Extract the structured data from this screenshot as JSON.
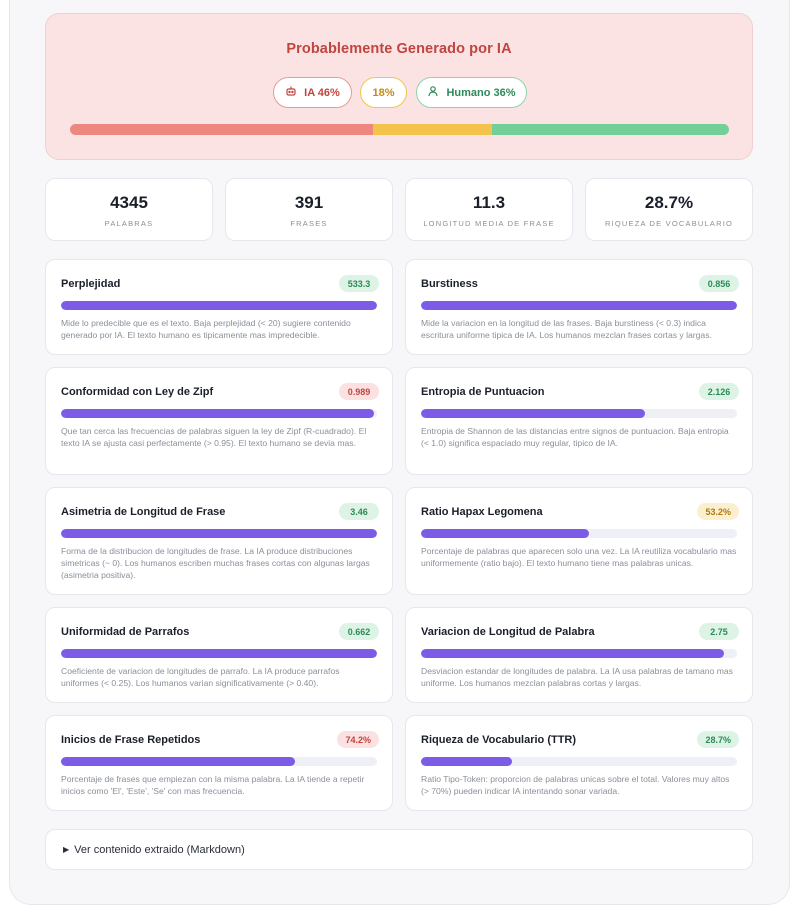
{
  "verdict": {
    "title": "Probablemente Generado por IA",
    "ai_label": "IA 46%",
    "mixed_label": "18%",
    "human_label": "Humano 36%",
    "ai_pct": 46,
    "mixed_pct": 18,
    "human_pct": 36
  },
  "stats": [
    {
      "value": "4345",
      "label": "PALABRAS"
    },
    {
      "value": "391",
      "label": "FRASES"
    },
    {
      "value": "11.3",
      "label": "LONGITUD MEDIA DE FRASE"
    },
    {
      "value": "28.7%",
      "label": "RIQUEZA DE VOCABULARIO"
    }
  ],
  "metrics": [
    {
      "title": "Perplejidad",
      "value": "533.3",
      "badge": "green",
      "fill": 1.0,
      "desc": "Mide lo predecible que es el texto. Baja perplejidad (< 20) sugiere contenido generado por IA. El texto humano es tipicamente mas impredecible."
    },
    {
      "title": "Burstiness",
      "value": "0.856",
      "badge": "green",
      "fill": 1.0,
      "desc": "Mide la variacion en la longitud de las frases. Baja burstiness (< 0.3) indica escritura uniforme tipica de IA. Los humanos mezclan frases cortas y largas."
    },
    {
      "title": "Conformidad con Ley de Zipf",
      "value": "0.989",
      "badge": "red",
      "fill": 0.989,
      "desc": "Que tan cerca las frecuencias de palabras siguen la ley de Zipf (R-cuadrado). El texto IA se ajusta casi perfectamente (> 0.95). El texto humano se devia mas."
    },
    {
      "title": "Entropia de Puntuacion",
      "value": "2.126",
      "badge": "green",
      "fill": 0.71,
      "desc": "Entropia de Shannon de las distancias entre signos de puntuacion. Baja entropia (< 1.0) significa espaciado muy regular, tipico de IA."
    },
    {
      "title": "Asimetria de Longitud de Frase",
      "value": "3.46",
      "badge": "green",
      "fill": 1.0,
      "desc": "Forma de la distribucion de longitudes de frase. La IA produce distribuciones simetricas (~ 0). Los humanos escriben muchas frases cortas con algunas largas (asimetria positiva)."
    },
    {
      "title": "Ratio Hapax Legomena",
      "value": "53.2%",
      "badge": "yellow",
      "fill": 0.532,
      "desc": "Porcentaje de palabras que aparecen solo una vez. La IA reutiliza vocabulario mas uniformemente (ratio bajo). El texto humano tiene mas palabras unicas."
    },
    {
      "title": "Uniformidad de Parrafos",
      "value": "0.662",
      "badge": "green",
      "fill": 1.0,
      "desc": "Coeficiente de variacion de longitudes de parrafo. La IA produce parrafos uniformes (< 0.25). Los humanos varian significativamente (> 0.40)."
    },
    {
      "title": "Variacion de Longitud de Palabra",
      "value": "2.75",
      "badge": "green",
      "fill": 0.96,
      "desc": "Desviacion estandar de longitudes de palabra. La IA usa palabras de tamano mas uniforme. Los humanos mezclan palabras cortas y largas."
    },
    {
      "title": "Inicios de Frase Repetidos",
      "value": "74.2%",
      "badge": "red",
      "fill": 0.742,
      "desc": "Porcentaje de frases que empiezan con la misma palabra. La IA tiende a repetir inicios como 'El', 'Este', 'Se' con mas frecuencia."
    },
    {
      "title": "Riqueza de Vocabulario (TTR)",
      "value": "28.7%",
      "badge": "green",
      "fill": 0.287,
      "desc": "Ratio Tipo-Token: proporcion de palabras unicas sobre el total. Valores muy altos (> 70%) pueden indicar IA intentando sonar variada."
    }
  ],
  "details": {
    "label": "Ver contenido extraido (Markdown)"
  }
}
